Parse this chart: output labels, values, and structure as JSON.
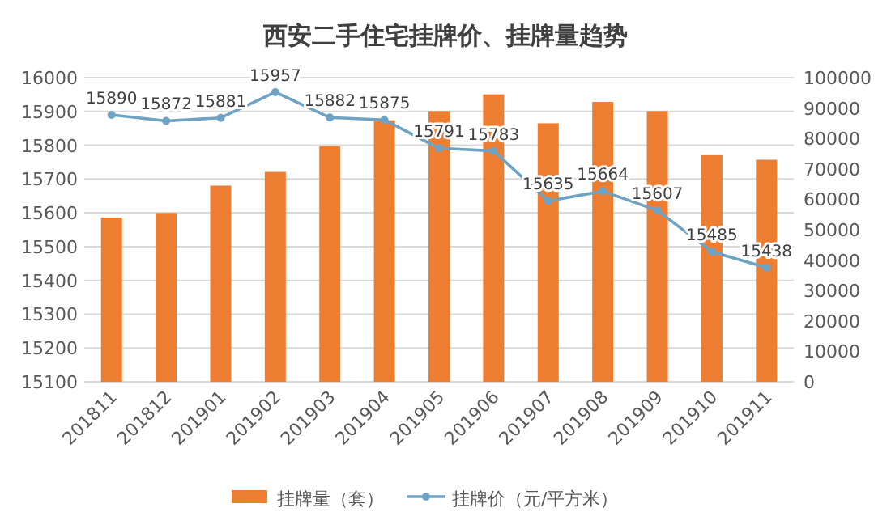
{
  "chart_data": {
    "type": "bar",
    "title": "西安二手住宅挂牌价、挂牌量趋势",
    "categories": [
      "201811",
      "201812",
      "201901",
      "201902",
      "201903",
      "201904",
      "201905",
      "201906",
      "201907",
      "201908",
      "201909",
      "201910",
      "201911"
    ],
    "series": [
      {
        "name": "挂牌量（套）",
        "axis": "y2",
        "color": "#ed7d31",
        "values": [
          54000,
          55500,
          64500,
          69000,
          77500,
          86000,
          89000,
          94500,
          85000,
          92000,
          89000,
          74500,
          73000
        ]
      },
      {
        "name": "挂牌价（元/平方米）",
        "type": "line",
        "axis": "y",
        "color": "#6fa3c4",
        "marker": "circle",
        "values": [
          15890,
          15872,
          15881,
          15957,
          15882,
          15875,
          15791,
          15783,
          15635,
          15664,
          15607,
          15485,
          15438
        ],
        "value_labels": [
          "15890",
          "15872",
          "15881",
          "15957",
          "15882",
          "15875",
          "15791",
          "15783",
          "15635",
          "15664",
          "15607",
          "15485",
          "15438"
        ]
      }
    ],
    "ylim": [
      15100,
      16000
    ],
    "yticks": [
      15100,
      15200,
      15300,
      15400,
      15500,
      15600,
      15700,
      15800,
      15900,
      16000
    ],
    "y2lim": [
      0,
      100000
    ],
    "y2ticks": [
      0,
      10000,
      20000,
      30000,
      40000,
      50000,
      60000,
      70000,
      80000,
      90000,
      100000
    ],
    "grid": "y",
    "legend": "bottom"
  }
}
